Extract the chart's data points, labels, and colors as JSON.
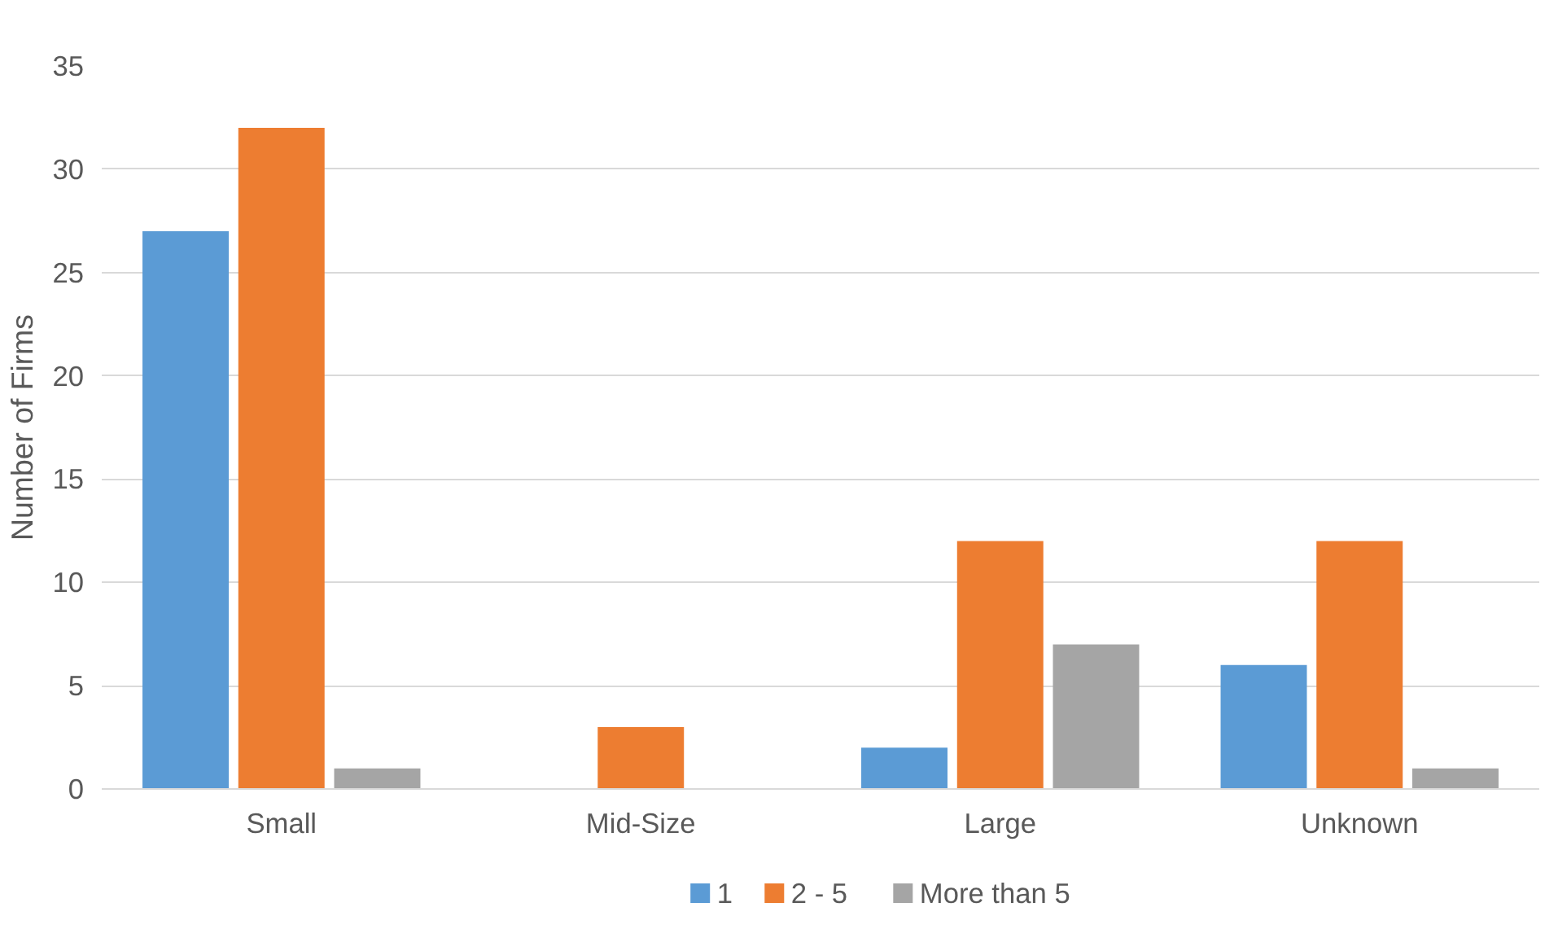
{
  "chart_data": {
    "type": "bar",
    "ylabel": "Number of Firms",
    "categories": [
      "Small",
      "Mid-Size",
      "Large",
      "Unknown"
    ],
    "series": [
      {
        "name": "1",
        "color": "#5b9bd5",
        "values": [
          27,
          0,
          2,
          6
        ]
      },
      {
        "name": "2 - 5",
        "color": "#ed7d31",
        "values": [
          32,
          3,
          12,
          12
        ]
      },
      {
        "name": "More than 5",
        "color": "#a5a5a5",
        "values": [
          1,
          0,
          7,
          1
        ]
      }
    ],
    "ylim": [
      0,
      35
    ],
    "yticks": [
      0,
      5,
      10,
      15,
      20,
      25,
      30,
      35
    ],
    "grid": "y",
    "legend": "bottom"
  }
}
